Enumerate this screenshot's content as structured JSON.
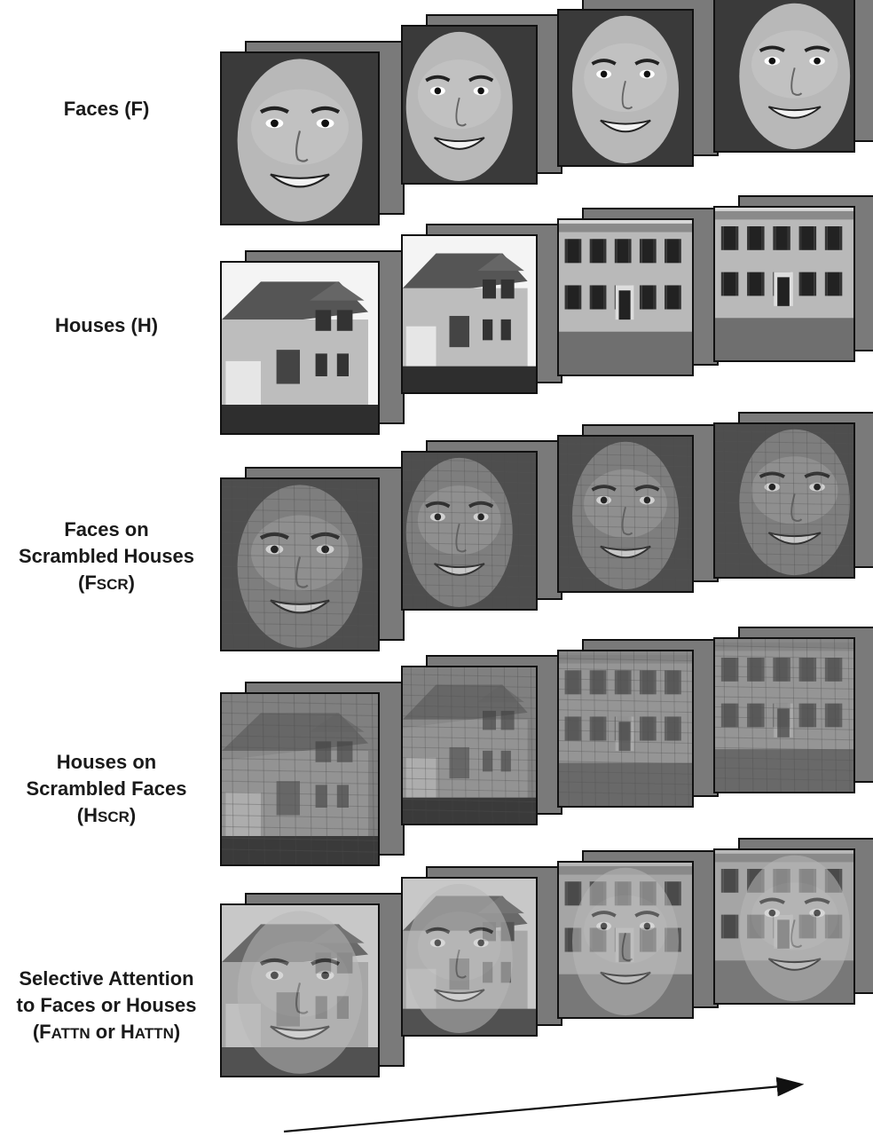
{
  "rows": [
    {
      "id": "faces",
      "label_lines": [
        {
          "main": "Faces (F)"
        }
      ]
    },
    {
      "id": "houses",
      "label_lines": [
        {
          "main": "Houses (H)"
        }
      ]
    },
    {
      "id": "faces-scr",
      "label_lines": [
        {
          "main": "Faces on"
        },
        {
          "main": "Scrambled Houses"
        },
        {
          "pre": "(F",
          "sub": "SCR",
          "post": ")"
        }
      ]
    },
    {
      "id": "houses-scr",
      "label_lines": [
        {
          "main": "Houses on"
        },
        {
          "main": "Scrambled Faces"
        },
        {
          "pre": "(H",
          "sub": "SCR",
          "post": ")"
        }
      ]
    },
    {
      "id": "attn",
      "label_lines": [
        {
          "main": "Selective Attention"
        },
        {
          "main": "to Faces or Houses"
        },
        {
          "pre": "(F",
          "sub": "ATTN",
          "mid": " or H",
          "sub2": "ATTN",
          "post": ")"
        }
      ]
    }
  ],
  "image_kinds": {
    "faces": "face",
    "houses": "house",
    "faces-scr": "face-scrambled",
    "houses-scr": "house-scrambled",
    "attn": "overlay"
  },
  "colors": {
    "frame_back": "#7a7a7a",
    "border": "#111111",
    "text": "#1a1a1a"
  }
}
